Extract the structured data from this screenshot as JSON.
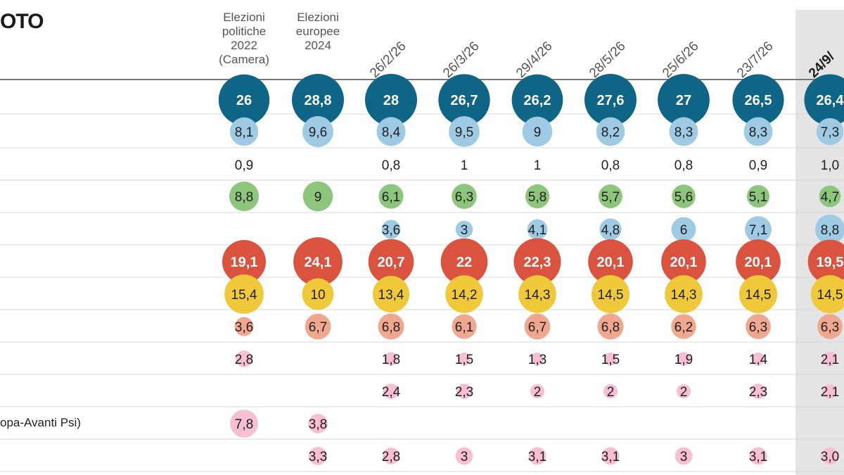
{
  "title": "OTO",
  "columns": [
    {
      "label": "Elezioni\npolitiche\n2022\n(Camera)",
      "kind": "header"
    },
    {
      "label": "Elezioni\neuropee\n2024",
      "kind": "header"
    },
    {
      "label": "26/2/26",
      "kind": "date"
    },
    {
      "label": "26/3/26",
      "kind": "date"
    },
    {
      "label": "29/4/26",
      "kind": "date"
    },
    {
      "label": "28/5/26",
      "kind": "date"
    },
    {
      "label": "25/6/26",
      "kind": "date"
    },
    {
      "label": "23/7/26",
      "kind": "date"
    },
    {
      "label": "24/9/",
      "kind": "date",
      "highlight": true
    }
  ],
  "row_labels": [
    "",
    "",
    "",
    "",
    "",
    "",
    "",
    "",
    "",
    "",
    "opa-Avanti Psi)",
    "",
    ""
  ],
  "colors": {
    "navy": "#0f6585",
    "lightblue": "#9ecbe3",
    "green": "#8dc57c",
    "red": "#d9533f",
    "yellow": "#f0c93b",
    "salmon": "#efa88f",
    "pink": "#f6bfd3",
    "highlight_band": "#e4e4e4"
  },
  "chart_data": {
    "type": "table",
    "title": "OTO",
    "columns": [
      "Elezioni politiche 2022 (Camera)",
      "Elezioni europee 2024",
      "26/2/26",
      "26/3/26",
      "29/4/26",
      "28/5/26",
      "25/6/26",
      "23/7/26",
      "24/9/"
    ],
    "rows": [
      {
        "color": "navy",
        "values": [
          "26",
          "28,8",
          "28",
          "26,7",
          "26,2",
          "27,6",
          "27",
          "26,5",
          "26,4"
        ]
      },
      {
        "color": "lightblue",
        "values": [
          "8,1",
          "9,6",
          "8,4",
          "9,5",
          "9",
          "8,2",
          "8,3",
          "8,3",
          "7,3"
        ]
      },
      {
        "color": "none",
        "values": [
          "0,9",
          null,
          "0,8",
          "1",
          "1",
          "0,8",
          "0,8",
          "0,9",
          "1,0"
        ]
      },
      {
        "color": "green",
        "values": [
          "8,8",
          "9",
          "6,1",
          "6,3",
          "5,8",
          "5,7",
          "5,6",
          "5,1",
          "4,7"
        ]
      },
      {
        "color": "lightblue",
        "values": [
          null,
          null,
          "3,6",
          "3",
          "4,1",
          "4,8",
          "6",
          "7,1",
          "8,8"
        ]
      },
      {
        "color": "red",
        "values": [
          "19,1",
          "24,1",
          "20,7",
          "22",
          "22,3",
          "20,1",
          "20,1",
          "20,1",
          "19,5"
        ]
      },
      {
        "color": "yellow",
        "values": [
          "15,4",
          "10",
          "13,4",
          "14,2",
          "14,3",
          "14,5",
          "14,3",
          "14,5",
          "14,5"
        ]
      },
      {
        "color": "salmon",
        "values": [
          "3,6",
          "6,7",
          "6,8",
          "6,1",
          "6,7",
          "6,8",
          "6,2",
          "6,3",
          "6,3"
        ]
      },
      {
        "color": "pink",
        "values": [
          "2,8",
          null,
          "1,8",
          "1,5",
          "1,3",
          "1,5",
          "1,9",
          "1,4",
          "2,1"
        ]
      },
      {
        "color": "pink",
        "values": [
          null,
          null,
          "2,4",
          "2,3",
          "2",
          "2",
          "2",
          "2,3",
          "2,1"
        ]
      },
      {
        "color": "pink",
        "values": [
          "7,8",
          "3,8",
          null,
          null,
          null,
          null,
          null,
          null,
          null
        ]
      },
      {
        "color": "pink",
        "values": [
          null,
          "3,3",
          "2,8",
          "3",
          "3,1",
          "3,1",
          "3",
          "3,1",
          "3,0"
        ]
      },
      {
        "color": "pink",
        "values": [
          null,
          null,
          null,
          null,
          null,
          null,
          null,
          null,
          null
        ]
      }
    ]
  }
}
